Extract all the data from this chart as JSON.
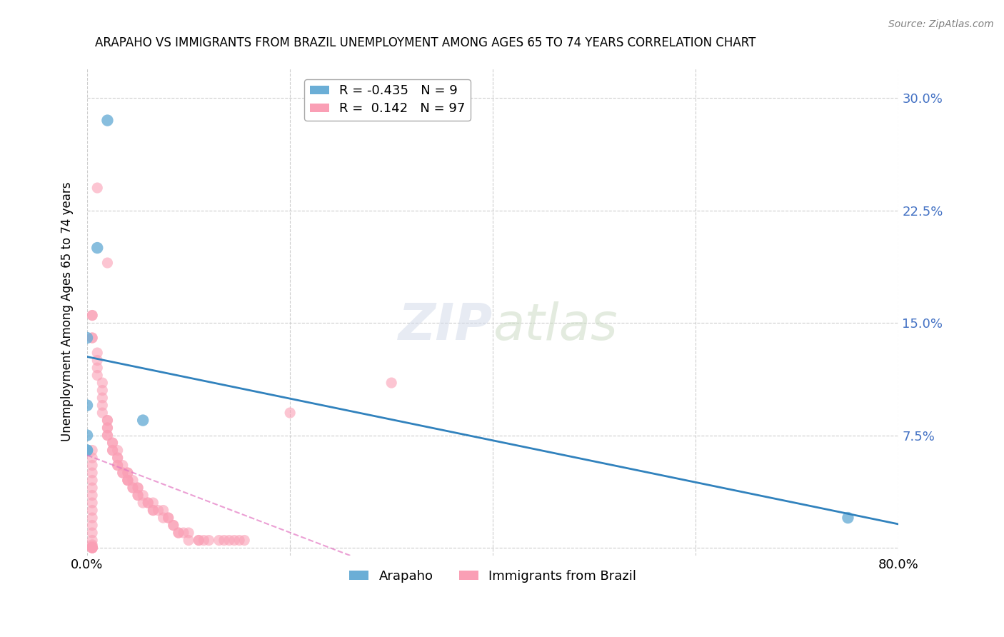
{
  "title": "ARAPAHO VS IMMIGRANTS FROM BRAZIL UNEMPLOYMENT AMONG AGES 65 TO 74 YEARS CORRELATION CHART",
  "source": "Source: ZipAtlas.com",
  "xlabel_bottom": "",
  "ylabel": "Unemployment Among Ages 65 to 74 years",
  "legend_label1": "Arapaho",
  "legend_label2": "Immigrants from Brazil",
  "r1": -0.435,
  "n1": 9,
  "r2": 0.142,
  "n2": 97,
  "color_blue": "#6baed6",
  "color_pink": "#fa9fb5",
  "color_blue_line": "#3182bd",
  "color_pink_line": "#e377c2",
  "xlim": [
    0,
    0.8
  ],
  "ylim": [
    -0.005,
    0.32
  ],
  "yticks": [
    0.0,
    0.075,
    0.15,
    0.225,
    0.3
  ],
  "ytick_labels": [
    "",
    "7.5%",
    "15.0%",
    "22.5%",
    "30.0%"
  ],
  "xticks": [
    0.0,
    0.2,
    0.4,
    0.6,
    0.8
  ],
  "xtick_labels": [
    "0.0%",
    "",
    "",
    "",
    "80.0%"
  ],
  "watermark": "ZIPatlas",
  "arapaho_x": [
    0.02,
    0.01,
    0.0,
    0.0,
    0.055,
    0.0,
    0.0,
    0.0,
    0.75
  ],
  "arapaho_y": [
    0.285,
    0.2,
    0.14,
    0.095,
    0.085,
    0.075,
    0.065,
    0.065,
    0.02
  ],
  "brazil_x": [
    0.01,
    0.02,
    0.005,
    0.005,
    0.005,
    0.005,
    0.01,
    0.01,
    0.01,
    0.01,
    0.015,
    0.015,
    0.015,
    0.015,
    0.015,
    0.02,
    0.02,
    0.02,
    0.02,
    0.02,
    0.02,
    0.025,
    0.025,
    0.025,
    0.025,
    0.03,
    0.03,
    0.03,
    0.03,
    0.03,
    0.035,
    0.035,
    0.035,
    0.04,
    0.04,
    0.04,
    0.04,
    0.04,
    0.045,
    0.045,
    0.045,
    0.05,
    0.05,
    0.05,
    0.05,
    0.055,
    0.055,
    0.06,
    0.06,
    0.065,
    0.065,
    0.065,
    0.07,
    0.075,
    0.075,
    0.08,
    0.08,
    0.085,
    0.085,
    0.09,
    0.09,
    0.095,
    0.1,
    0.1,
    0.11,
    0.11,
    0.115,
    0.12,
    0.13,
    0.135,
    0.14,
    0.145,
    0.15,
    0.155,
    0.005,
    0.005,
    0.005,
    0.005,
    0.005,
    0.005,
    0.005,
    0.005,
    0.005,
    0.005,
    0.005,
    0.005,
    0.005,
    0.005,
    0.005,
    0.005,
    0.005,
    0.005,
    0.005,
    0.005,
    0.005,
    0.2,
    0.3
  ],
  "brazil_y": [
    0.24,
    0.19,
    0.155,
    0.155,
    0.14,
    0.14,
    0.13,
    0.125,
    0.12,
    0.115,
    0.11,
    0.105,
    0.1,
    0.095,
    0.09,
    0.085,
    0.085,
    0.08,
    0.08,
    0.075,
    0.075,
    0.07,
    0.07,
    0.065,
    0.065,
    0.065,
    0.06,
    0.06,
    0.055,
    0.055,
    0.055,
    0.05,
    0.05,
    0.05,
    0.05,
    0.045,
    0.045,
    0.045,
    0.045,
    0.04,
    0.04,
    0.04,
    0.04,
    0.035,
    0.035,
    0.035,
    0.03,
    0.03,
    0.03,
    0.03,
    0.025,
    0.025,
    0.025,
    0.025,
    0.02,
    0.02,
    0.02,
    0.015,
    0.015,
    0.01,
    0.01,
    0.01,
    0.01,
    0.005,
    0.005,
    0.005,
    0.005,
    0.005,
    0.005,
    0.005,
    0.005,
    0.005,
    0.005,
    0.005,
    0.065,
    0.06,
    0.055,
    0.05,
    0.045,
    0.04,
    0.035,
    0.03,
    0.025,
    0.02,
    0.015,
    0.01,
    0.005,
    0.002,
    0.001,
    0.0,
    0.0,
    0.0,
    0.0,
    0.0,
    0.0,
    0.09,
    0.11
  ]
}
